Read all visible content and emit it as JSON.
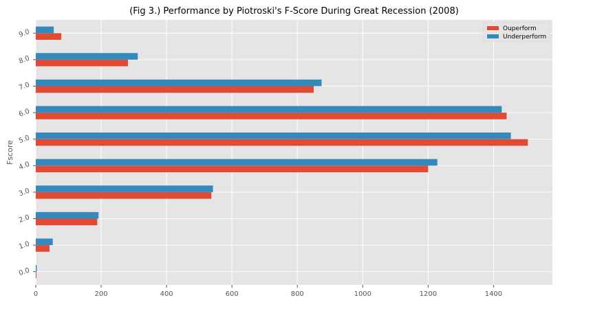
{
  "chart_data": {
    "type": "bar",
    "orientation": "horizontal",
    "title": "(Fig 3.) Performance by Piotroski's F-Score During Great Recession (2008)",
    "xlabel": "",
    "ylabel": "Fscore",
    "categories": [
      "0.0",
      "1.0",
      "2.0",
      "3.0",
      "4.0",
      "5.0",
      "6.0",
      "7.0",
      "8.0",
      "9.0"
    ],
    "series": [
      {
        "name": "Ouperform",
        "color": "#e24a33",
        "values": [
          2,
          42,
          188,
          537,
          1200,
          1505,
          1440,
          850,
          282,
          78
        ]
      },
      {
        "name": "Underperform",
        "color": "#348abd",
        "values": [
          3,
          52,
          192,
          542,
          1228,
          1453,
          1425,
          874,
          312,
          55
        ]
      }
    ],
    "xlim": [
      0,
      1580
    ],
    "xticks": [
      0,
      200,
      400,
      600,
      800,
      1000,
      1200,
      1400
    ],
    "grid": true,
    "background": "#e5e5e5",
    "legend_position": "top-right"
  }
}
